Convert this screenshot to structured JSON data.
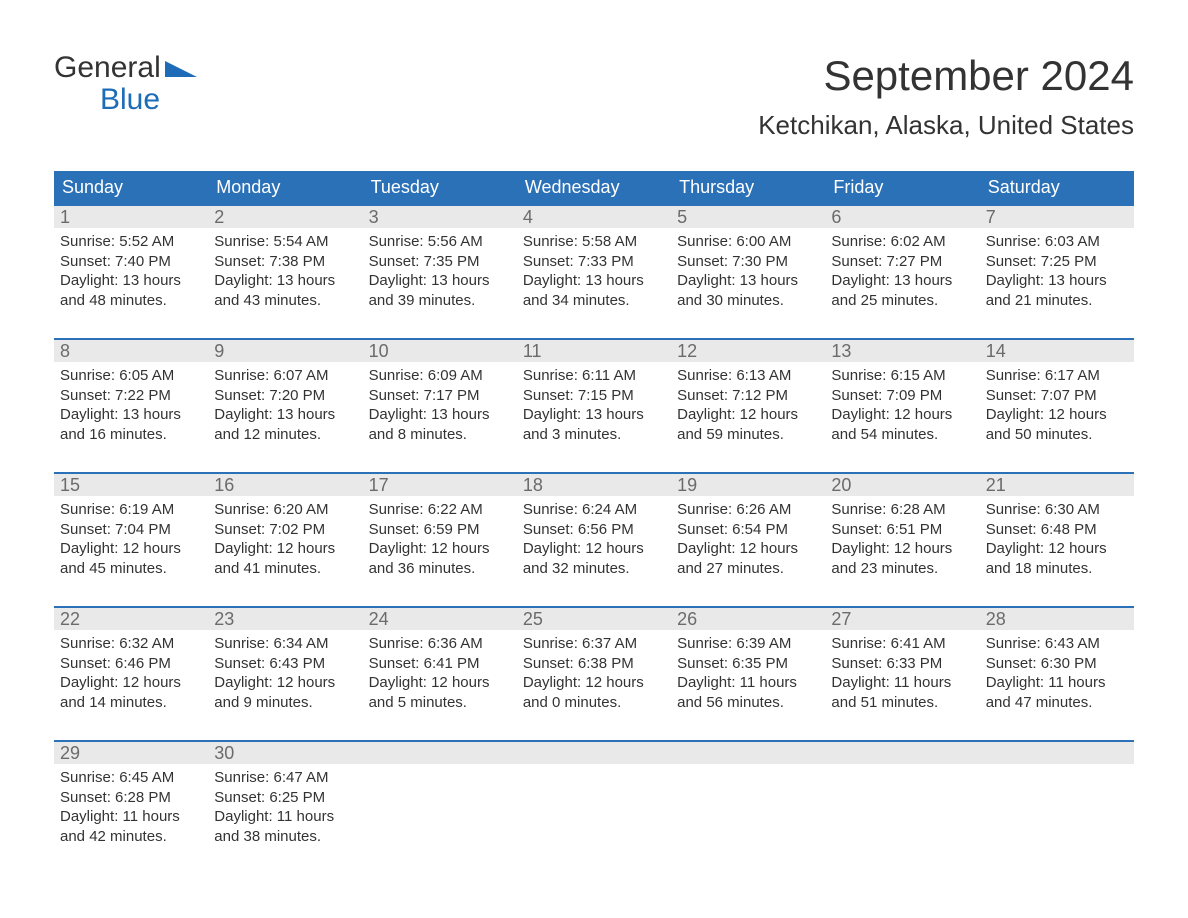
{
  "brand": {
    "top": "General",
    "bottom": "Blue"
  },
  "title": "September 2024",
  "location": "Ketchikan, Alaska, United States",
  "colors": {
    "header_bg": "#2b71b8",
    "header_text": "#ffffff",
    "daynum_bg": "#e9e9e9",
    "daynum_text": "#6b6b6b",
    "body_text": "#333333",
    "logo_blue": "#1e6bb8",
    "page_bg": "#ffffff",
    "row_border": "#2b71b8"
  },
  "layout": {
    "type": "calendar-table",
    "columns": 7,
    "rows": 5,
    "month_title_fontsize": 42,
    "location_fontsize": 26,
    "weekday_fontsize": 18,
    "daynum_fontsize": 18,
    "body_fontsize": 15
  },
  "weekdays": [
    "Sunday",
    "Monday",
    "Tuesday",
    "Wednesday",
    "Thursday",
    "Friday",
    "Saturday"
  ],
  "days": [
    {
      "n": "1",
      "sr": "Sunrise: 5:52 AM",
      "ss": "Sunset: 7:40 PM",
      "d1": "Daylight: 13 hours",
      "d2": "and 48 minutes."
    },
    {
      "n": "2",
      "sr": "Sunrise: 5:54 AM",
      "ss": "Sunset: 7:38 PM",
      "d1": "Daylight: 13 hours",
      "d2": "and 43 minutes."
    },
    {
      "n": "3",
      "sr": "Sunrise: 5:56 AM",
      "ss": "Sunset: 7:35 PM",
      "d1": "Daylight: 13 hours",
      "d2": "and 39 minutes."
    },
    {
      "n": "4",
      "sr": "Sunrise: 5:58 AM",
      "ss": "Sunset: 7:33 PM",
      "d1": "Daylight: 13 hours",
      "d2": "and 34 minutes."
    },
    {
      "n": "5",
      "sr": "Sunrise: 6:00 AM",
      "ss": "Sunset: 7:30 PM",
      "d1": "Daylight: 13 hours",
      "d2": "and 30 minutes."
    },
    {
      "n": "6",
      "sr": "Sunrise: 6:02 AM",
      "ss": "Sunset: 7:27 PM",
      "d1": "Daylight: 13 hours",
      "d2": "and 25 minutes."
    },
    {
      "n": "7",
      "sr": "Sunrise: 6:03 AM",
      "ss": "Sunset: 7:25 PM",
      "d1": "Daylight: 13 hours",
      "d2": "and 21 minutes."
    },
    {
      "n": "8",
      "sr": "Sunrise: 6:05 AM",
      "ss": "Sunset: 7:22 PM",
      "d1": "Daylight: 13 hours",
      "d2": "and 16 minutes."
    },
    {
      "n": "9",
      "sr": "Sunrise: 6:07 AM",
      "ss": "Sunset: 7:20 PM",
      "d1": "Daylight: 13 hours",
      "d2": "and 12 minutes."
    },
    {
      "n": "10",
      "sr": "Sunrise: 6:09 AM",
      "ss": "Sunset: 7:17 PM",
      "d1": "Daylight: 13 hours",
      "d2": "and 8 minutes."
    },
    {
      "n": "11",
      "sr": "Sunrise: 6:11 AM",
      "ss": "Sunset: 7:15 PM",
      "d1": "Daylight: 13 hours",
      "d2": "and 3 minutes."
    },
    {
      "n": "12",
      "sr": "Sunrise: 6:13 AM",
      "ss": "Sunset: 7:12 PM",
      "d1": "Daylight: 12 hours",
      "d2": "and 59 minutes."
    },
    {
      "n": "13",
      "sr": "Sunrise: 6:15 AM",
      "ss": "Sunset: 7:09 PM",
      "d1": "Daylight: 12 hours",
      "d2": "and 54 minutes."
    },
    {
      "n": "14",
      "sr": "Sunrise: 6:17 AM",
      "ss": "Sunset: 7:07 PM",
      "d1": "Daylight: 12 hours",
      "d2": "and 50 minutes."
    },
    {
      "n": "15",
      "sr": "Sunrise: 6:19 AM",
      "ss": "Sunset: 7:04 PM",
      "d1": "Daylight: 12 hours",
      "d2": "and 45 minutes."
    },
    {
      "n": "16",
      "sr": "Sunrise: 6:20 AM",
      "ss": "Sunset: 7:02 PM",
      "d1": "Daylight: 12 hours",
      "d2": "and 41 minutes."
    },
    {
      "n": "17",
      "sr": "Sunrise: 6:22 AM",
      "ss": "Sunset: 6:59 PM",
      "d1": "Daylight: 12 hours",
      "d2": "and 36 minutes."
    },
    {
      "n": "18",
      "sr": "Sunrise: 6:24 AM",
      "ss": "Sunset: 6:56 PM",
      "d1": "Daylight: 12 hours",
      "d2": "and 32 minutes."
    },
    {
      "n": "19",
      "sr": "Sunrise: 6:26 AM",
      "ss": "Sunset: 6:54 PM",
      "d1": "Daylight: 12 hours",
      "d2": "and 27 minutes."
    },
    {
      "n": "20",
      "sr": "Sunrise: 6:28 AM",
      "ss": "Sunset: 6:51 PM",
      "d1": "Daylight: 12 hours",
      "d2": "and 23 minutes."
    },
    {
      "n": "21",
      "sr": "Sunrise: 6:30 AM",
      "ss": "Sunset: 6:48 PM",
      "d1": "Daylight: 12 hours",
      "d2": "and 18 minutes."
    },
    {
      "n": "22",
      "sr": "Sunrise: 6:32 AM",
      "ss": "Sunset: 6:46 PM",
      "d1": "Daylight: 12 hours",
      "d2": "and 14 minutes."
    },
    {
      "n": "23",
      "sr": "Sunrise: 6:34 AM",
      "ss": "Sunset: 6:43 PM",
      "d1": "Daylight: 12 hours",
      "d2": "and 9 minutes."
    },
    {
      "n": "24",
      "sr": "Sunrise: 6:36 AM",
      "ss": "Sunset: 6:41 PM",
      "d1": "Daylight: 12 hours",
      "d2": "and 5 minutes."
    },
    {
      "n": "25",
      "sr": "Sunrise: 6:37 AM",
      "ss": "Sunset: 6:38 PM",
      "d1": "Daylight: 12 hours",
      "d2": "and 0 minutes."
    },
    {
      "n": "26",
      "sr": "Sunrise: 6:39 AM",
      "ss": "Sunset: 6:35 PM",
      "d1": "Daylight: 11 hours",
      "d2": "and 56 minutes."
    },
    {
      "n": "27",
      "sr": "Sunrise: 6:41 AM",
      "ss": "Sunset: 6:33 PM",
      "d1": "Daylight: 11 hours",
      "d2": "and 51 minutes."
    },
    {
      "n": "28",
      "sr": "Sunrise: 6:43 AM",
      "ss": "Sunset: 6:30 PM",
      "d1": "Daylight: 11 hours",
      "d2": "and 47 minutes."
    },
    {
      "n": "29",
      "sr": "Sunrise: 6:45 AM",
      "ss": "Sunset: 6:28 PM",
      "d1": "Daylight: 11 hours",
      "d2": "and 42 minutes."
    },
    {
      "n": "30",
      "sr": "Sunrise: 6:47 AM",
      "ss": "Sunset: 6:25 PM",
      "d1": "Daylight: 11 hours",
      "d2": "and 38 minutes."
    }
  ]
}
